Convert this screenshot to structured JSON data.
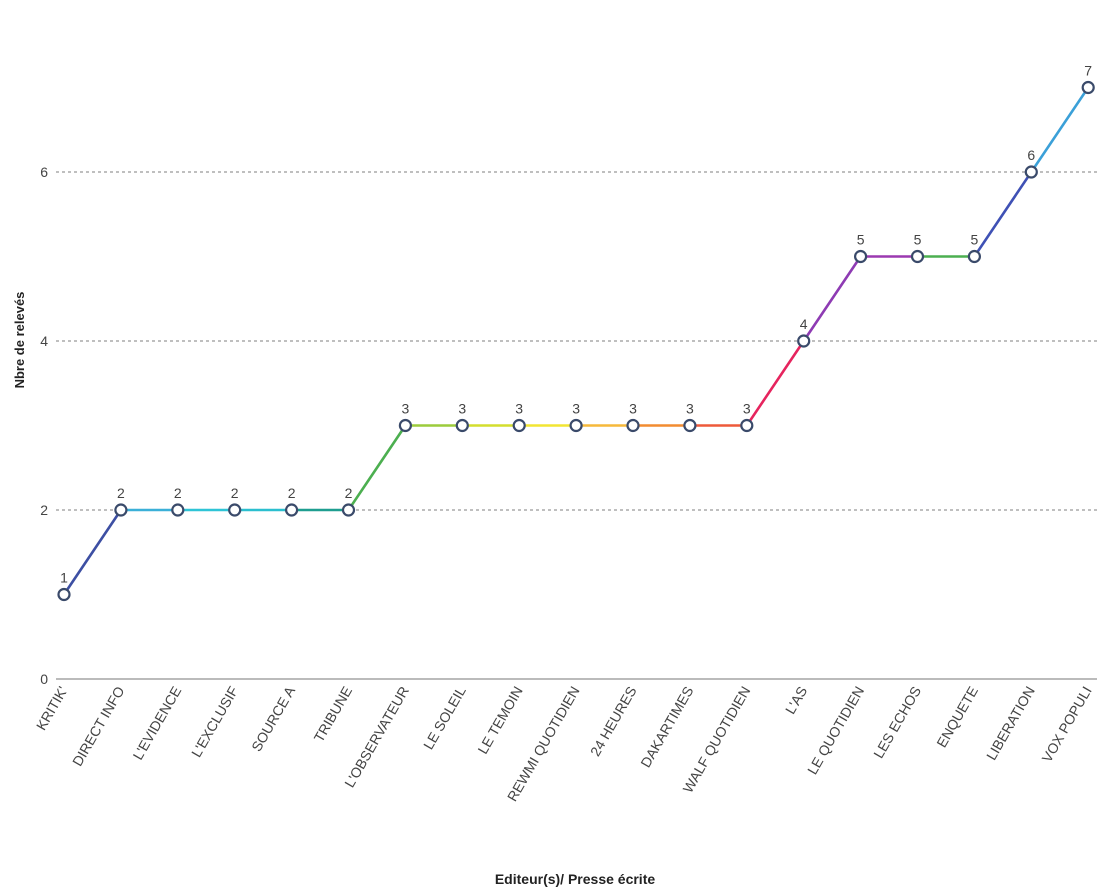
{
  "chart_data": {
    "type": "line",
    "xlabel": "Editeur(s)/ Presse écrite",
    "ylabel": "Nbre de relevés",
    "ylim": [
      0,
      7.2
    ],
    "yticks": [
      0,
      2,
      4,
      6
    ],
    "grid": true,
    "categories": [
      "KRITIK'",
      "DIRECT INFO",
      "L'EVIDENCE",
      "L'EXCLUSIF",
      "SOURCE A",
      "TRIBUNE",
      "L'OBSERVATEUR",
      "LE SOLEIL",
      "LE TEMOIN",
      "REWMI QUOTIDIEN",
      "24 HEURES",
      "DAKARTIMES",
      "WALF QUOTIDIEN",
      "L'AS",
      "LE QUOTIDIEN",
      "LES ECHOS",
      "ENQUETE",
      "LIBERATION",
      "VOX POPULI"
    ],
    "values": [
      1,
      2,
      2,
      2,
      2,
      2,
      3,
      3,
      3,
      3,
      3,
      3,
      3,
      4,
      5,
      5,
      5,
      6,
      7
    ],
    "segment_colors": [
      "#3d4fa3",
      "#3bb0d8",
      "#2ec4d6",
      "#2bbfcf",
      "#1e9e90",
      "#4caf50",
      "#9ccc3c",
      "#d4de2e",
      "#f2e533",
      "#f6b93b",
      "#f28c30",
      "#ee5a3a",
      "#e6245e",
      "#8e3bb3",
      "#9b39b0",
      "#4caf50",
      "#3f51b5",
      "#3ba0d8"
    ]
  }
}
